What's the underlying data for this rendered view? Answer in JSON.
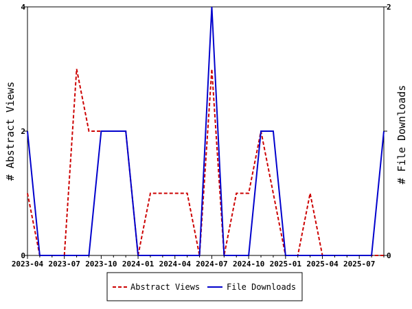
{
  "chart_data": {
    "type": "line",
    "x_tick_labels": [
      "2023-04",
      "2023-07",
      "2023-10",
      "2024-01",
      "2024-04",
      "2024-07",
      "2024-10",
      "2025-01",
      "2025-04",
      "2025-07"
    ],
    "x_months": [
      "2023-04",
      "2023-05",
      "2023-06",
      "2023-07",
      "2023-08",
      "2023-09",
      "2023-10",
      "2023-11",
      "2023-12",
      "2024-01",
      "2024-02",
      "2024-03",
      "2024-04",
      "2024-05",
      "2024-06",
      "2024-07",
      "2024-08",
      "2024-09",
      "2024-10",
      "2024-11",
      "2024-12",
      "2025-01",
      "2025-02",
      "2025-03",
      "2025-04",
      "2025-05",
      "2025-06",
      "2025-07",
      "2025-08",
      "2025-09"
    ],
    "left_axis": {
      "label": "# Abstract Views",
      "ylim": [
        0,
        4
      ],
      "ticks": [
        "0",
        "2",
        "4"
      ]
    },
    "right_axis": {
      "label": "# File Downloads",
      "ylim": [
        0,
        2
      ],
      "ticks": [
        "0",
        "1",
        "2"
      ]
    },
    "series": [
      {
        "name": "Abstract Views",
        "axis": "left",
        "color": "#cc0000",
        "dash": "dashed",
        "values": [
          1,
          0,
          0,
          0,
          3,
          2,
          2,
          2,
          2,
          0,
          1,
          1,
          1,
          1,
          0,
          3,
          0,
          1,
          1,
          2,
          1,
          0,
          0,
          1,
          0,
          0,
          0,
          0,
          0,
          0
        ]
      },
      {
        "name": "File Downloads",
        "axis": "right",
        "color": "#0000cc",
        "dash": "solid",
        "values": [
          1,
          0,
          0,
          0,
          0,
          0,
          1,
          1,
          1,
          0,
          0,
          0,
          0,
          0,
          0,
          2,
          0,
          0,
          0,
          1,
          1,
          0,
          0,
          0,
          0,
          0,
          0,
          0,
          0,
          1
        ]
      }
    ],
    "legend": {
      "placement": "bottom",
      "entries": [
        "Abstract Views",
        "File Downloads"
      ]
    },
    "grid": false
  }
}
